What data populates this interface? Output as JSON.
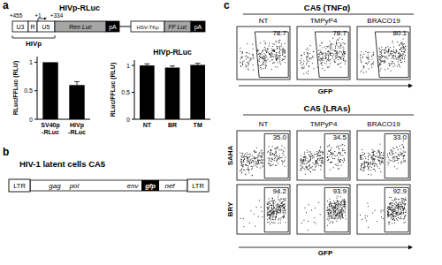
{
  "panel_labels": [
    "a",
    "b",
    "c"
  ],
  "construct": {
    "title": "HIVp-RLuc",
    "positions": [
      "+455",
      "+1",
      "+334"
    ],
    "elements": [
      "U3",
      "R",
      "U5",
      "Ren Luc",
      "pA",
      "HSV-TKp",
      "FF Luc",
      "pA"
    ],
    "promoter_label": "HIVp"
  },
  "chart_data": [
    {
      "type": "bar",
      "y_label": "RLuc/FFLuc (RLU)",
      "categories": [
        "SV40p\n-RLuc",
        "HIVp\n-RLuc"
      ],
      "values": [
        1.0,
        0.6
      ],
      "errors": [
        0.0,
        0.06
      ],
      "color": "#000000",
      "ylim": [
        0,
        1.1
      ],
      "yticks": [
        0,
        0.5,
        1
      ]
    },
    {
      "type": "bar",
      "title": "HIVp-RLuc",
      "y_label": "RLuc/FFLuc (RLU)",
      "categories": [
        "NT",
        "BR",
        "TM"
      ],
      "values": [
        1.0,
        0.96,
        1.01
      ],
      "errors": [
        0.03,
        0.03,
        0.03
      ],
      "color": "#000000",
      "ylim": [
        0,
        1.1
      ],
      "yticks": [
        0,
        0.5,
        1
      ]
    }
  ],
  "provirus": {
    "title": "HIV-1 latent cells CA5",
    "elements": [
      "LTR",
      "gag",
      "pol",
      "env",
      "gfp",
      "nef",
      "LTR"
    ]
  },
  "flow": {
    "tnf": {
      "title": "CA5 (TNFα)",
      "columns": [
        "NT",
        "TMPyP4",
        "BRACO19"
      ],
      "gates": [
        {
          "value": 78.7,
          "label": "78.7"
        },
        {
          "value": 78.7,
          "label": "78.7"
        },
        {
          "value": 80.1,
          "label": "80.1"
        }
      ],
      "axis_label": "GFP"
    },
    "lras": {
      "title": "CA5 (LRAs)",
      "columns": [
        "NT",
        "TMPyP4",
        "BRACO19"
      ],
      "rows": [
        {
          "label": "SAHA",
          "gates": [
            {
              "value": 35.0,
              "label": "35.0"
            },
            {
              "value": 34.5,
              "label": "34.5"
            },
            {
              "value": 33.0,
              "label": "33.0"
            }
          ]
        },
        {
          "label": "BRY",
          "gates": [
            {
              "value": 94.2,
              "label": "94.2"
            },
            {
              "value": 93.9,
              "label": "93.9"
            },
            {
              "value": 92.9,
              "label": "92.9"
            }
          ]
        }
      ],
      "axis_label": "GFP"
    }
  }
}
